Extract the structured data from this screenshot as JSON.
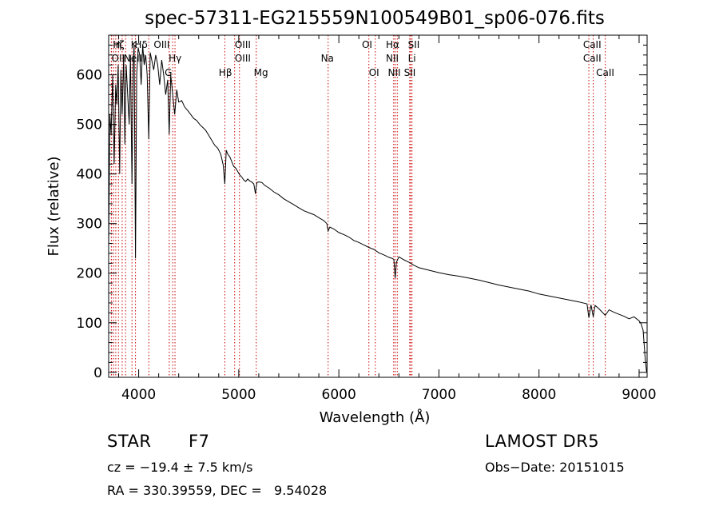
{
  "chart_data": {
    "type": "line",
    "title": "spec-57311-EG215559N100549B01_sp06-076.fits",
    "xlabel": "Wavelength (Å)",
    "ylabel": "Flux (relative)",
    "xlim": [
      3700,
      9080
    ],
    "ylim": [
      -10,
      680
    ],
    "xticks": [
      4000,
      5000,
      6000,
      7000,
      8000,
      9000
    ],
    "yticks": [
      0,
      100,
      200,
      300,
      400,
      500,
      600
    ],
    "grid": false,
    "series": [
      {
        "x": [
          3700,
          3712,
          3725,
          3740,
          3755,
          3770,
          3782,
          3795,
          3810,
          3822,
          3835,
          3850,
          3862,
          3875,
          3890,
          3905,
          3918,
          3933,
          3945,
          3955,
          3968,
          3980,
          3995,
          4010,
          4025,
          4040,
          4055,
          4070,
          4085,
          4101,
          4115,
          4130,
          4150,
          4170,
          4190,
          4210,
          4230,
          4250,
          4270,
          4290,
          4305,
          4320,
          4340,
          4360,
          4380,
          4400,
          4430,
          4460,
          4490,
          4520,
          4550,
          4580,
          4610,
          4640,
          4670,
          4700,
          4730,
          4760,
          4790,
          4820,
          4845,
          4861,
          4875,
          4890,
          4910,
          4930,
          4950,
          4970,
          4990,
          5010,
          5030,
          5050,
          5070,
          5090,
          5110,
          5130,
          5150,
          5167,
          5175,
          5183,
          5200,
          5230,
          5260,
          5300,
          5350,
          5400,
          5450,
          5500,
          5550,
          5600,
          5650,
          5700,
          5750,
          5800,
          5850,
          5880,
          5893,
          5910,
          5950,
          6000,
          6050,
          6100,
          6150,
          6200,
          6250,
          6300,
          6350,
          6400,
          6450,
          6500,
          6530,
          6550,
          6563,
          6575,
          6600,
          6650,
          6700,
          6750,
          6800,
          6900,
          7000,
          7100,
          7200,
          7300,
          7400,
          7500,
          7600,
          7700,
          7800,
          7900,
          8000,
          8100,
          8200,
          8300,
          8400,
          8480,
          8498,
          8520,
          8542,
          8560,
          8600,
          8662,
          8700,
          8750,
          8800,
          8850,
          8900,
          8950,
          9000,
          9020,
          9040,
          9060,
          9075
        ],
        "y": [
          250,
          520,
          480,
          600,
          420,
          580,
          540,
          620,
          400,
          610,
          520,
          640,
          460,
          620,
          560,
          500,
          640,
          380,
          620,
          660,
          230,
          600,
          655,
          640,
          580,
          660,
          620,
          640,
          600,
          470,
          645,
          630,
          610,
          640,
          620,
          580,
          630,
          600,
          560,
          590,
          480,
          600,
          560,
          520,
          570,
          545,
          548,
          535,
          528,
          520,
          512,
          508,
          500,
          494,
          488,
          478,
          468,
          458,
          452,
          440,
          418,
          380,
          448,
          440,
          435,
          425,
          415,
          412,
          405,
          398,
          394,
          388,
          385,
          390,
          386,
          384,
          380,
          360,
          375,
          383,
          384,
          383,
          377,
          372,
          364,
          358,
          350,
          344,
          338,
          332,
          326,
          322,
          318,
          312,
          306,
          300,
          285,
          293,
          289,
          282,
          278,
          273,
          266,
          262,
          257,
          252,
          248,
          241,
          237,
          232,
          230,
          228,
          190,
          222,
          233,
          227,
          222,
          216,
          211,
          206,
          201,
          197,
          194,
          190,
          186,
          181,
          176,
          172,
          168,
          164,
          158,
          154,
          150,
          146,
          142,
          138,
          110,
          136,
          112,
          135,
          128,
          115,
          126,
          121,
          117,
          113,
          108,
          112,
          104,
          98,
          85,
          30,
          0
        ]
      }
    ],
    "lines": [
      {
        "label": "H",
        "wavelength": 3750
      },
      {
        "label": "η",
        "wavelength": 3771
      },
      {
        "label": "ζ",
        "wavelength": 3798
      },
      {
        "label": "ε",
        "wavelength": 3835
      },
      {
        "label": "K",
        "wavelength": 3933
      },
      {
        "label": "H",
        "wavelength": 3968
      },
      {
        "label": "δ",
        "wavelength": 4101
      },
      {
        "label": "OII",
        "wavelength": 3727
      },
      {
        "label": "OII",
        "wavelength": 3729
      },
      {
        "label": "NeIII",
        "wavelength": 3869
      },
      {
        "label": "OIII",
        "wavelength": 4363
      },
      {
        "label": "Hγ",
        "wavelength": 4340
      },
      {
        "label": "G",
        "wavelength": 4305
      },
      {
        "label": "OIII",
        "wavelength": 4959
      },
      {
        "label": "OIII",
        "wavelength": 5007
      },
      {
        "label": "Hβ",
        "wavelength": 4861
      },
      {
        "label": "Mg",
        "wavelength": 5175
      },
      {
        "label": "Na",
        "wavelength": 5893
      },
      {
        "label": "OI",
        "wavelength": 6300
      },
      {
        "label": "OI",
        "wavelength": 6364
      },
      {
        "label": "Hα",
        "wavelength": 6563
      },
      {
        "label": "NII",
        "wavelength": 6548
      },
      {
        "label": "NII",
        "wavelength": 6584
      },
      {
        "label": "SII",
        "wavelength": 6717
      },
      {
        "label": "SII",
        "wavelength": 6731
      },
      {
        "label": "Li",
        "wavelength": 6708
      },
      {
        "label": "CaII",
        "wavelength": 8498
      },
      {
        "label": "CaII",
        "wavelength": 8542
      },
      {
        "label": "CaII",
        "wavelength": 8662
      }
    ]
  },
  "info": {
    "class": "STAR",
    "subclass": "F7",
    "survey": "LAMOST DR5",
    "cz": "cz = −19.4 ± 7.5 km/s",
    "obs_date": "Obs−Date: 20151015",
    "coords": "RA = 330.39559, DEC =   9.54028"
  },
  "colors": {
    "spectrum": "#000000",
    "line_markers": "#cc0000",
    "axes": "#000000",
    "background": "#ffffff"
  }
}
